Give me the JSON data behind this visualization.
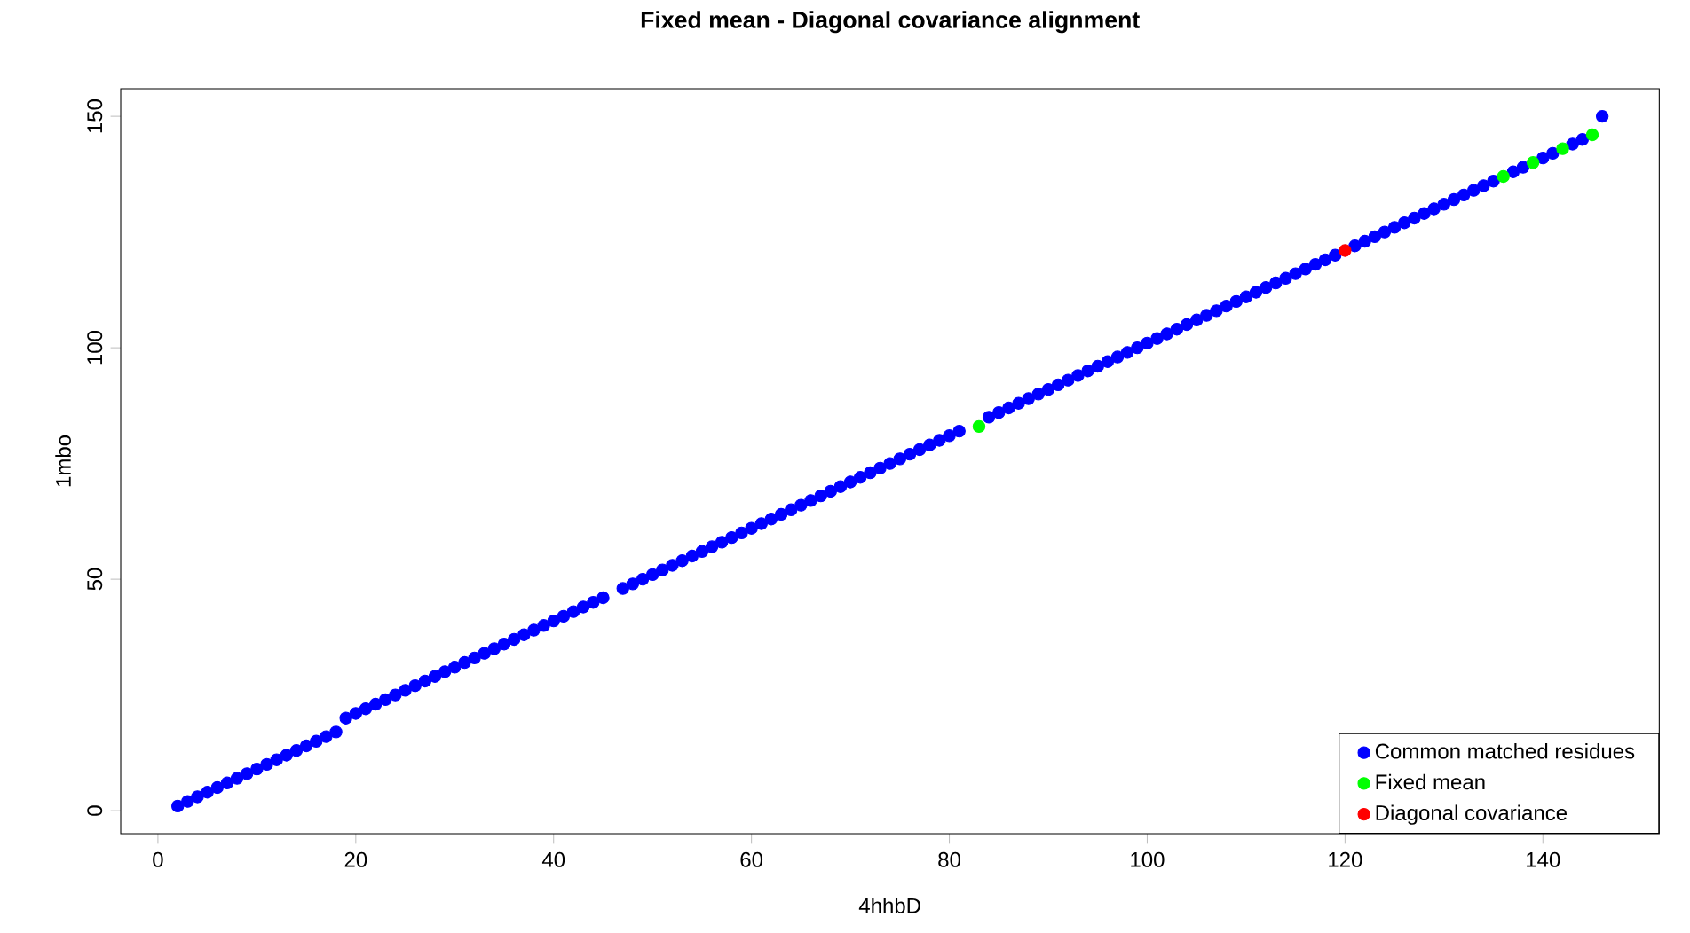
{
  "chart_data": {
    "type": "scatter",
    "title": "Fixed mean - Diagonal covariance alignment",
    "xlabel": "4hhbD",
    "ylabel": "1mbo",
    "xlim": [
      -3.76,
      151.76
    ],
    "ylim": [
      -4.96,
      155.96
    ],
    "xticks": [
      0,
      20,
      40,
      60,
      80,
      100,
      120,
      140
    ],
    "yticks": [
      0,
      50,
      100,
      150
    ],
    "marker": "circle",
    "legend": "bottom right",
    "grid": false,
    "series": [
      {
        "name": "Common matched residues",
        "color": "#0000ff",
        "x": [
          2,
          3,
          4,
          5,
          6,
          7,
          8,
          9,
          10,
          11,
          12,
          13,
          14,
          15,
          16,
          17,
          18,
          19,
          20,
          21,
          22,
          23,
          24,
          25,
          26,
          27,
          28,
          29,
          30,
          31,
          32,
          33,
          34,
          35,
          36,
          37,
          38,
          39,
          40,
          41,
          42,
          43,
          44,
          45,
          47,
          48,
          49,
          50,
          51,
          52,
          53,
          54,
          55,
          56,
          57,
          58,
          59,
          60,
          61,
          62,
          63,
          64,
          65,
          66,
          67,
          68,
          69,
          70,
          71,
          72,
          73,
          74,
          75,
          76,
          77,
          78,
          79,
          80,
          81,
          84,
          85,
          86,
          87,
          88,
          89,
          90,
          91,
          92,
          93,
          94,
          95,
          96,
          97,
          98,
          99,
          100,
          101,
          102,
          103,
          104,
          105,
          106,
          107,
          108,
          109,
          110,
          111,
          112,
          113,
          114,
          115,
          116,
          117,
          118,
          119,
          121,
          122,
          123,
          124,
          125,
          126,
          127,
          128,
          129,
          130,
          131,
          132,
          133,
          134,
          135,
          137,
          138,
          140,
          141,
          143,
          144,
          146
        ],
        "values": [
          1,
          2,
          3,
          4,
          5,
          6,
          7,
          8,
          9,
          10,
          11,
          12,
          13,
          14,
          15,
          16,
          17,
          20,
          21,
          22,
          23,
          24,
          25,
          26,
          27,
          28,
          29,
          30,
          31,
          32,
          33,
          34,
          35,
          36,
          37,
          38,
          39,
          40,
          41,
          42,
          43,
          44,
          45,
          46,
          48,
          49,
          50,
          51,
          52,
          53,
          54,
          55,
          56,
          57,
          58,
          59,
          60,
          61,
          62,
          63,
          64,
          65,
          66,
          67,
          68,
          69,
          70,
          71,
          72,
          73,
          74,
          75,
          76,
          77,
          78,
          79,
          80,
          81,
          82,
          85,
          86,
          87,
          88,
          89,
          90,
          91,
          92,
          93,
          94,
          95,
          96,
          97,
          98,
          99,
          100,
          101,
          102,
          103,
          104,
          105,
          106,
          107,
          108,
          109,
          110,
          111,
          112,
          113,
          114,
          115,
          116,
          117,
          118,
          119,
          120,
          122,
          123,
          124,
          125,
          126,
          127,
          128,
          129,
          130,
          131,
          132,
          133,
          134,
          135,
          136,
          138,
          139,
          141,
          142,
          144,
          145,
          150
        ]
      },
      {
        "name": "Fixed mean",
        "color": "#00ff00",
        "x": [
          83,
          136,
          139,
          142,
          145
        ],
        "values": [
          83,
          137,
          140,
          143,
          146
        ]
      },
      {
        "name": "Diagonal covariance",
        "color": "#ff0000",
        "x": [
          120
        ],
        "values": [
          121
        ]
      }
    ]
  }
}
